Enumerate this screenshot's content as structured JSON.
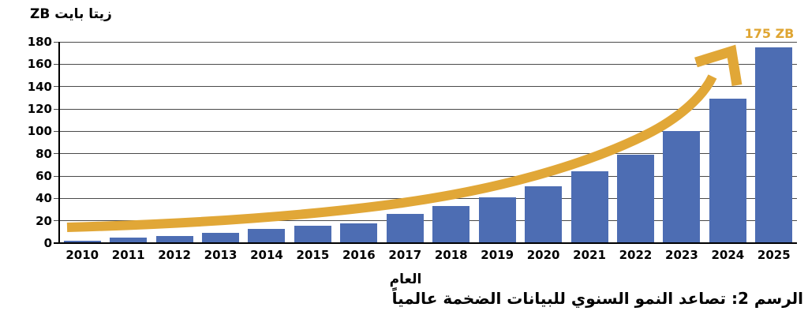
{
  "yaxis_title": "زيتا بايت ZB",
  "xaxis_title": "العام",
  "caption": "الرسم 2: تصاعد النمو السنوي للبيانات الضخمة عالمياً",
  "annotation": {
    "label": "175 ZB"
  },
  "colors": {
    "bar": "#4d6db3",
    "arrow": "#e1a737",
    "annotation_text": "#dfa532",
    "gridline": "#4a4a4a",
    "axis": "#000000",
    "text": "#000000",
    "background": "#ffffff"
  },
  "chart_data": {
    "type": "bar",
    "title": "",
    "categories": [
      "2010",
      "2011",
      "2012",
      "2013",
      "2014",
      "2015",
      "2016",
      "2017",
      "2018",
      "2019",
      "2020",
      "2021",
      "2022",
      "2023",
      "2024",
      "2025"
    ],
    "values": [
      2,
      5,
      6.5,
      9,
      12.5,
      15.5,
      18,
      26,
      33,
      41,
      51,
      64,
      79,
      100,
      129,
      175
    ],
    "xlabel": "العام",
    "ylabel": "زيتا بايت ZB",
    "ylim": [
      0,
      180
    ],
    "yticks": [
      0,
      20,
      40,
      60,
      80,
      100,
      120,
      140,
      160,
      180
    ],
    "grid": true,
    "legend": false,
    "annotations": [
      {
        "text": "175 ZB",
        "category": "2025",
        "value": 175,
        "style": "gold-label"
      },
      {
        "type": "trend-arrow",
        "description": "thick gold exponential growth arrow from 2010 to 175 ZB label"
      }
    ]
  }
}
